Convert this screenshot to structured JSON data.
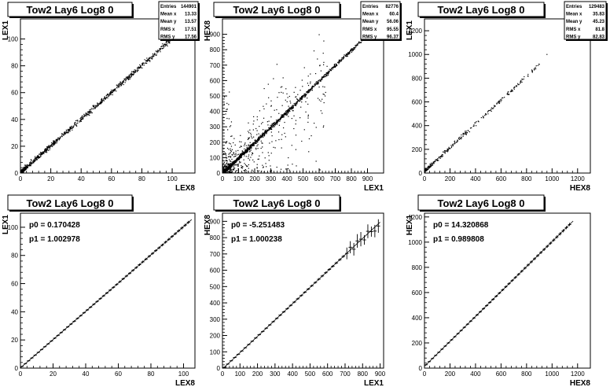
{
  "chart_data": [
    {
      "type": "scatter",
      "title": "Tow2 Lay6 Log8 0",
      "xlabel": "LEX8",
      "ylabel": "LEX1",
      "xlim": [
        0,
        115
      ],
      "ylim": [
        0,
        115
      ],
      "xticks": [
        0,
        20,
        40,
        60,
        80,
        100
      ],
      "yticks": [
        0,
        20,
        40,
        60,
        80,
        100
      ],
      "stats": [
        {
          "label": "Entries",
          "value": "144901"
        },
        {
          "label": "Mean x",
          "value": "13.33"
        },
        {
          "label": "Mean y",
          "value": "13.57"
        },
        {
          "label": "RMS x",
          "value": "17.51"
        },
        {
          "label": "RMS y",
          "value": "17.56"
        }
      ],
      "trend": {
        "slope": 1.0,
        "intercept": 0.2,
        "xmax": 106
      },
      "scatter_noise": "low"
    },
    {
      "type": "scatter",
      "title": "Tow2 Lay6 Log8 0",
      "xlabel": "LEX1",
      "ylabel": "HEX8",
      "xlim": [
        0,
        1000
      ],
      "ylim": [
        0,
        1000
      ],
      "xticks": [
        0,
        100,
        200,
        300,
        400,
        500,
        600,
        700,
        800,
        900
      ],
      "yticks": [
        0,
        100,
        200,
        300,
        400,
        500,
        600,
        700,
        800,
        900
      ],
      "stats": [
        {
          "label": "Entries",
          "value": "82776"
        },
        {
          "label": "Mean x",
          "value": "60.4"
        },
        {
          "label": "Mean y",
          "value": "56.06"
        },
        {
          "label": "RMS x",
          "value": "95.55"
        },
        {
          "label": "RMS y",
          "value": "96.37"
        }
      ],
      "trend": {
        "slope": 1.0,
        "intercept": -5,
        "xmax": 900
      },
      "scatter_noise": "high"
    },
    {
      "type": "scatter",
      "title": "Tow2 Lay6 Log8 0",
      "xlabel": "HEX8",
      "ylabel": "LEX1",
      "xlim": [
        0,
        1300
      ],
      "ylim": [
        0,
        1300
      ],
      "xticks": [
        0,
        200,
        400,
        600,
        800,
        1000,
        1200
      ],
      "yticks": [
        0,
        200,
        400,
        600,
        800,
        1000,
        1200
      ],
      "stats": [
        {
          "label": "Entries",
          "value": "129483"
        },
        {
          "label": "Mean x",
          "value": "35.83"
        },
        {
          "label": "Mean y",
          "value": "45.23"
        },
        {
          "label": "RMS x",
          "value": "81.8"
        },
        {
          "label": "RMS y",
          "value": "82.83"
        }
      ],
      "trend": {
        "slope": 1.0,
        "intercept": 14,
        "xmax": 1000
      },
      "scatter_noise": "sparse"
    },
    {
      "type": "line",
      "title": "Tow2 Lay6 Log8 0",
      "xlabel": "LEX8",
      "ylabel": "LEX1",
      "xlim": [
        0,
        107
      ],
      "ylim": [
        0,
        110
      ],
      "xticks": [
        0,
        20,
        40,
        60,
        80,
        100
      ],
      "yticks": [
        0,
        20,
        40,
        60,
        80,
        100
      ],
      "fit": {
        "p0": "p0 = 0.170428",
        "p1": "p1 = 1.002978",
        "p0_value": 0.170428,
        "p1_value": 1.002978
      },
      "profile_range": [
        0,
        103
      ],
      "profile_step": 2
    },
    {
      "type": "line",
      "title": "Tow2 Lay6 Log8 0",
      "xlabel": "LEX1",
      "ylabel": "HEX8",
      "xlim": [
        0,
        920
      ],
      "ylim": [
        0,
        950
      ],
      "xticks": [
        0,
        100,
        200,
        300,
        400,
        500,
        600,
        700,
        800,
        900
      ],
      "yticks": [
        0,
        100,
        200,
        300,
        400,
        500,
        600,
        700,
        800,
        900
      ],
      "fit": {
        "p0": "p0 = -5.251483",
        "p1": "p1 = 1.000238",
        "p0_value": -5.251483,
        "p1_value": 1.000238
      },
      "profile_range": [
        0,
        880
      ],
      "profile_step": 20
    },
    {
      "type": "line",
      "title": "Tow2 Lay6 Log8 0",
      "xlabel": "HEX8",
      "ylabel": "HEX1",
      "xlim": [
        0,
        1300
      ],
      "ylim": [
        0,
        1230
      ],
      "xticks": [
        0,
        200,
        400,
        600,
        800,
        1000,
        1200
      ],
      "yticks": [
        0,
        200,
        400,
        600,
        800,
        1000,
        1200
      ],
      "fit": {
        "p0": "p0 = 14.320868",
        "p1": "p1 = 0.989808",
        "p0_value": 14.320868,
        "p1_value": 0.989808
      },
      "profile_range": [
        0,
        1140
      ],
      "profile_step": 25
    }
  ]
}
